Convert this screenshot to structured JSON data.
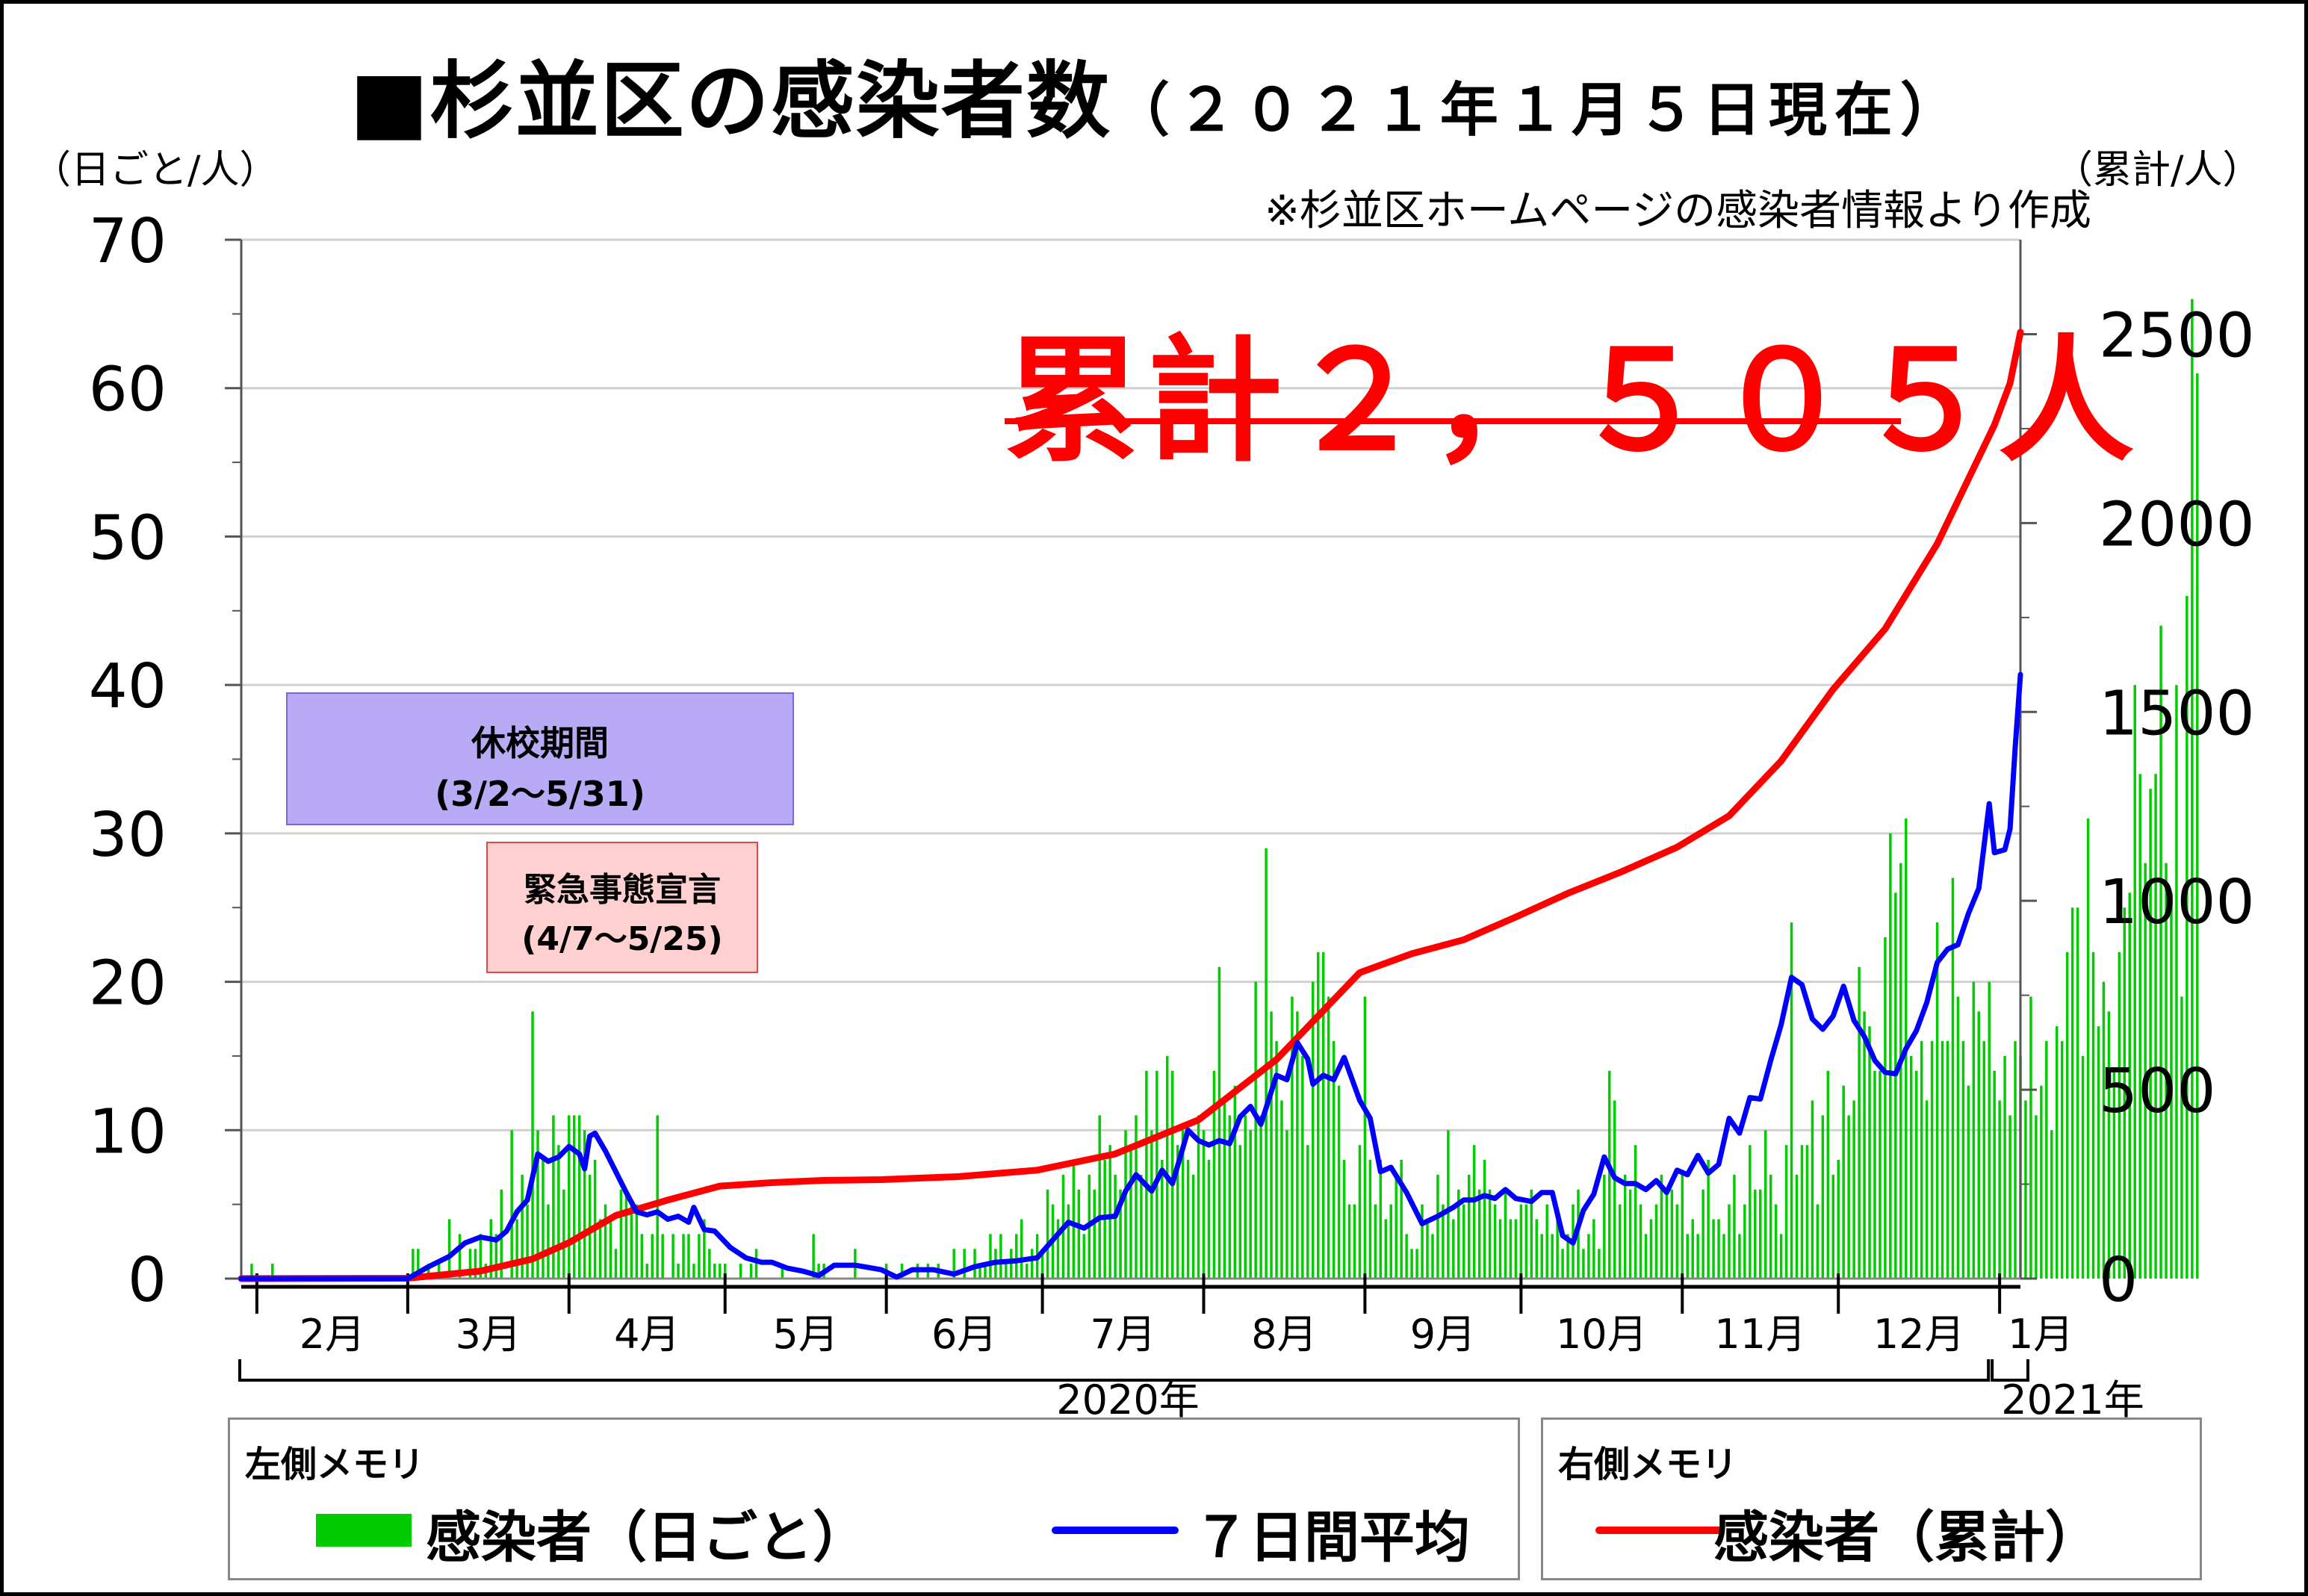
{
  "title": {
    "main": "■杉並区の感染者数",
    "sub": "（２０２１年１月５日現在）"
  },
  "units": {
    "left": "（日ごと/人）",
    "right": "（累計/人）"
  },
  "source_note": "※杉並区ホームページの感染者情報より作成",
  "cumulative_callout": "累計２，５０５人",
  "school_closure": {
    "title": "休校期間",
    "period": "(3/2～5/31)"
  },
  "emergency_declaration": {
    "title": "緊急事態宣言",
    "period": "(4/7～5/25)"
  },
  "legend": {
    "left_heading": "左側メモリ",
    "daily_label": "感染者（日ごと）",
    "avg_label": "７日間平均",
    "right_heading": "右側メモリ",
    "cum_label": "感染者（累計）"
  },
  "colors": {
    "daily": "#00cc00",
    "avg": "#0000ff",
    "cum": "#ff0000",
    "school": "#b8aaf5",
    "emergency": "#ffd0d0"
  },
  "chart_data": {
    "type": "bar+line",
    "x_start": "2020-01-29",
    "x_end": "2021-01-05",
    "months": [
      {
        "label": "2月",
        "start": "2020-02-01"
      },
      {
        "label": "3月",
        "start": "2020-03-01"
      },
      {
        "label": "4月",
        "start": "2020-04-01"
      },
      {
        "label": "5月",
        "start": "2020-05-01"
      },
      {
        "label": "6月",
        "start": "2020-06-01"
      },
      {
        "label": "7月",
        "start": "2020-07-01"
      },
      {
        "label": "8月",
        "start": "2020-08-01"
      },
      {
        "label": "9月",
        "start": "2020-09-01"
      },
      {
        "label": "10月",
        "start": "2020-10-01"
      },
      {
        "label": "11月",
        "start": "2020-11-01"
      },
      {
        "label": "12月",
        "start": "2020-12-01"
      },
      {
        "label": "1月",
        "start": "2021-01-01"
      }
    ],
    "years": [
      {
        "label": "2020年"
      },
      {
        "label": "2021年"
      }
    ],
    "y_left": {
      "min": 0,
      "max": 70,
      "ticks": [
        0,
        10,
        20,
        30,
        40,
        50,
        60,
        70
      ]
    },
    "y_right": {
      "min": 0,
      "max": 2750,
      "ticks": [
        0,
        500,
        1000,
        1500,
        2000,
        2500
      ]
    },
    "series": [
      {
        "type": "bar",
        "axis": "left",
        "start_date": "2020-01-29",
        "values": [
          0,
          0,
          1,
          0,
          0,
          0,
          1,
          0,
          0,
          0,
          0,
          0,
          0,
          0,
          0,
          0,
          0,
          0,
          0,
          0,
          0,
          0,
          0,
          0,
          0,
          0,
          0,
          0,
          0,
          0,
          0,
          0,
          0,
          2,
          2,
          0,
          1,
          0,
          1,
          0,
          4,
          0,
          3,
          0,
          2,
          2,
          3,
          1,
          4,
          3,
          6,
          0,
          10,
          4,
          7,
          5,
          18,
          10,
          8,
          5,
          11,
          9,
          6,
          11,
          11,
          11,
          10,
          7,
          8,
          4,
          5,
          4,
          2,
          6,
          6,
          5,
          5,
          3,
          1,
          3,
          11,
          3,
          0,
          3,
          1,
          3,
          3,
          1,
          3,
          4,
          2,
          1,
          1,
          1,
          0,
          0,
          1,
          0,
          1,
          2,
          0,
          0,
          0,
          0,
          1,
          0,
          0,
          0,
          0,
          0,
          3,
          1,
          1,
          0,
          0,
          0,
          0,
          0,
          2,
          0,
          0,
          0,
          0,
          0,
          1,
          0,
          0,
          1,
          0,
          0,
          1,
          0,
          1,
          0,
          1,
          0,
          0,
          2,
          0,
          2,
          0,
          2,
          1,
          1,
          3,
          2,
          3,
          1,
          2,
          3,
          4,
          1,
          2,
          3,
          2,
          6,
          5,
          4,
          7,
          5,
          8,
          6,
          3,
          7,
          6,
          11,
          8,
          9,
          7,
          6,
          10,
          9,
          11,
          7,
          14,
          10,
          14,
          8,
          15,
          14,
          9,
          10,
          8,
          7,
          11,
          10,
          8,
          14,
          21,
          12,
          11,
          13,
          9,
          11,
          10,
          20,
          11,
          29,
          18,
          16,
          12,
          10,
          19,
          18,
          15,
          9,
          20,
          22,
          22,
          19,
          16,
          13,
          8,
          5,
          5,
          9,
          19,
          8,
          5,
          8,
          4,
          5,
          7,
          8,
          3,
          2,
          2,
          5,
          4,
          3,
          7,
          5,
          10,
          4,
          6,
          5,
          7,
          9,
          6,
          8,
          6,
          5,
          4,
          6,
          4,
          4,
          5,
          5,
          6,
          4,
          3,
          5,
          3,
          4,
          2,
          3,
          5,
          6,
          2,
          3,
          4,
          2,
          7,
          14,
          12,
          5,
          7,
          6,
          9,
          5,
          3,
          4,
          5,
          7,
          6,
          6,
          5,
          7,
          3,
          4,
          3,
          6,
          8,
          4,
          4,
          3,
          5,
          7,
          3,
          5,
          9,
          6,
          6,
          10,
          7,
          5,
          3,
          9,
          24,
          7,
          9,
          9,
          12,
          5,
          11,
          14,
          7,
          8,
          13,
          11,
          12,
          21,
          18,
          17,
          14,
          14,
          23,
          30,
          26,
          28,
          31,
          15,
          14,
          16,
          12,
          16,
          24,
          16,
          16,
          27,
          19,
          16,
          13,
          20,
          18,
          16,
          20,
          14,
          12,
          15,
          11,
          16,
          15,
          12,
          19,
          11,
          13,
          16,
          10,
          17,
          16,
          22,
          25,
          25,
          15,
          31,
          22,
          17,
          20,
          18,
          14,
          22,
          25,
          26,
          40,
          34,
          28,
          33,
          34,
          44,
          28,
          26,
          40,
          19,
          46,
          66,
          61
        ]
      },
      {
        "type": "line",
        "axis": "left",
        "points": [
          [
            "2020-01-29",
            0
          ],
          [
            "2020-03-01",
            0
          ],
          [
            "2020-03-05",
            0.8
          ],
          [
            "2020-03-09",
            1.5
          ],
          [
            "2020-03-12",
            2.4
          ],
          [
            "2020-03-15",
            2.8
          ],
          [
            "2020-03-18",
            2.6
          ],
          [
            "2020-03-20",
            3.2
          ],
          [
            "2020-03-22",
            4.5
          ],
          [
            "2020-03-24",
            5.3
          ],
          [
            "2020-03-26",
            8.4
          ],
          [
            "2020-03-28",
            7.9
          ],
          [
            "2020-03-30",
            8.2
          ],
          [
            "2020-04-01",
            8.9
          ],
          [
            "2020-04-03",
            8.4
          ],
          [
            "2020-04-04",
            7.4
          ],
          [
            "2020-04-05",
            9.6
          ],
          [
            "2020-04-06",
            9.8
          ],
          [
            "2020-04-08",
            8.6
          ],
          [
            "2020-04-10",
            7.2
          ],
          [
            "2020-04-12",
            5.8
          ],
          [
            "2020-04-14",
            4.5
          ],
          [
            "2020-04-16",
            4.3
          ],
          [
            "2020-04-18",
            4.5
          ],
          [
            "2020-04-20",
            4.0
          ],
          [
            "2020-04-22",
            4.2
          ],
          [
            "2020-04-24",
            3.8
          ],
          [
            "2020-04-25",
            4.8
          ],
          [
            "2020-04-27",
            3.3
          ],
          [
            "2020-04-29",
            3.2
          ],
          [
            "2020-05-02",
            2.1
          ],
          [
            "2020-05-05",
            1.4
          ],
          [
            "2020-05-08",
            1.1
          ],
          [
            "2020-05-10",
            1.1
          ],
          [
            "2020-05-13",
            0.7
          ],
          [
            "2020-05-16",
            0.5
          ],
          [
            "2020-05-19",
            0.2
          ],
          [
            "2020-05-22",
            0.9
          ],
          [
            "2020-05-26",
            0.9
          ],
          [
            "2020-05-31",
            0.6
          ],
          [
            "2020-06-03",
            0.1
          ],
          [
            "2020-06-06",
            0.6
          ],
          [
            "2020-06-10",
            0.6
          ],
          [
            "2020-06-14",
            0.3
          ],
          [
            "2020-06-18",
            0.8
          ],
          [
            "2020-06-22",
            1.1
          ],
          [
            "2020-06-26",
            1.2
          ],
          [
            "2020-06-30",
            1.4
          ],
          [
            "2020-07-03",
            2.6
          ],
          [
            "2020-07-06",
            3.8
          ],
          [
            "2020-07-09",
            3.4
          ],
          [
            "2020-07-12",
            4.1
          ],
          [
            "2020-07-15",
            4.2
          ],
          [
            "2020-07-17",
            5.9
          ],
          [
            "2020-07-19",
            7.0
          ],
          [
            "2020-07-22",
            5.9
          ],
          [
            "2020-07-24",
            7.3
          ],
          [
            "2020-07-26",
            6.4
          ],
          [
            "2020-07-29",
            10.0
          ],
          [
            "2020-07-31",
            9.3
          ],
          [
            "2020-08-02",
            9.0
          ],
          [
            "2020-08-04",
            9.3
          ],
          [
            "2020-08-06",
            9.1
          ],
          [
            "2020-08-08",
            10.9
          ],
          [
            "2020-08-10",
            11.6
          ],
          [
            "2020-08-12",
            10.4
          ],
          [
            "2020-08-15",
            13.7
          ],
          [
            "2020-08-17",
            13.4
          ],
          [
            "2020-08-19",
            15.9
          ],
          [
            "2020-08-21",
            14.8
          ],
          [
            "2020-08-22",
            13.1
          ],
          [
            "2020-08-24",
            13.7
          ],
          [
            "2020-08-26",
            13.4
          ],
          [
            "2020-08-28",
            14.9
          ],
          [
            "2020-08-31",
            12.0
          ],
          [
            "2020-09-02",
            10.8
          ],
          [
            "2020-09-04",
            7.2
          ],
          [
            "2020-09-06",
            7.5
          ],
          [
            "2020-09-09",
            5.8
          ],
          [
            "2020-09-12",
            3.7
          ],
          [
            "2020-09-15",
            4.2
          ],
          [
            "2020-09-18",
            4.8
          ],
          [
            "2020-09-20",
            5.3
          ],
          [
            "2020-09-22",
            5.3
          ],
          [
            "2020-09-24",
            5.6
          ],
          [
            "2020-09-26",
            5.4
          ],
          [
            "2020-09-28",
            6.0
          ],
          [
            "2020-09-30",
            5.4
          ],
          [
            "2020-10-03",
            5.2
          ],
          [
            "2020-10-05",
            5.8
          ],
          [
            "2020-10-07",
            5.8
          ],
          [
            "2020-10-09",
            2.9
          ],
          [
            "2020-10-11",
            2.4
          ],
          [
            "2020-10-13",
            4.6
          ],
          [
            "2020-10-15",
            5.7
          ],
          [
            "2020-10-17",
            8.2
          ],
          [
            "2020-10-19",
            6.8
          ],
          [
            "2020-10-21",
            6.4
          ],
          [
            "2020-10-23",
            6.4
          ],
          [
            "2020-10-25",
            6.0
          ],
          [
            "2020-10-27",
            6.6
          ],
          [
            "2020-10-29",
            5.8
          ],
          [
            "2020-10-31",
            7.3
          ],
          [
            "2020-11-02",
            7.0
          ],
          [
            "2020-11-04",
            8.3
          ],
          [
            "2020-11-06",
            7.1
          ],
          [
            "2020-11-08",
            7.7
          ],
          [
            "2020-11-10",
            10.8
          ],
          [
            "2020-11-12",
            9.8
          ],
          [
            "2020-11-14",
            12.2
          ],
          [
            "2020-11-16",
            12.1
          ],
          [
            "2020-11-18",
            14.7
          ],
          [
            "2020-11-20",
            17.1
          ],
          [
            "2020-11-22",
            20.3
          ],
          [
            "2020-11-24",
            19.8
          ],
          [
            "2020-11-26",
            17.5
          ],
          [
            "2020-11-28",
            16.8
          ],
          [
            "2020-11-30",
            17.7
          ],
          [
            "2020-12-02",
            19.7
          ],
          [
            "2020-12-04",
            17.4
          ],
          [
            "2020-12-06",
            16.3
          ],
          [
            "2020-12-08",
            14.7
          ],
          [
            "2020-12-10",
            13.9
          ],
          [
            "2020-12-12",
            13.8
          ],
          [
            "2020-12-14",
            15.5
          ],
          [
            "2020-12-16",
            16.7
          ],
          [
            "2020-12-18",
            18.6
          ],
          [
            "2020-12-20",
            21.3
          ],
          [
            "2020-12-22",
            22.2
          ],
          [
            "2020-12-24",
            22.5
          ],
          [
            "2020-12-26",
            24.6
          ],
          [
            "2020-12-28",
            26.3
          ],
          [
            "2020-12-30",
            32.0
          ],
          [
            "2020-12-31",
            28.7
          ],
          [
            "2021-01-02",
            28.9
          ],
          [
            "2021-01-03",
            30.3
          ],
          [
            "2021-01-04",
            35.8
          ],
          [
            "2021-01-05",
            40.7
          ]
        ]
      },
      {
        "type": "line",
        "axis": "right",
        "points": [
          [
            "2020-01-29",
            0
          ],
          [
            "2020-03-01",
            1
          ],
          [
            "2020-03-15",
            20
          ],
          [
            "2020-03-25",
            52
          ],
          [
            "2020-04-01",
            95
          ],
          [
            "2020-04-10",
            167
          ],
          [
            "2020-04-20",
            208
          ],
          [
            "2020-04-30",
            245
          ],
          [
            "2020-05-10",
            254
          ],
          [
            "2020-05-20",
            260
          ],
          [
            "2020-05-31",
            262
          ],
          [
            "2020-06-15",
            270
          ],
          [
            "2020-06-30",
            287
          ],
          [
            "2020-07-15",
            330
          ],
          [
            "2020-07-31",
            420
          ],
          [
            "2020-08-15",
            580
          ],
          [
            "2020-08-31",
            810
          ],
          [
            "2020-09-10",
            860
          ],
          [
            "2020-09-20",
            897
          ],
          [
            "2020-09-30",
            957
          ],
          [
            "2020-10-10",
            1020
          ],
          [
            "2020-10-20",
            1075
          ],
          [
            "2020-10-31",
            1142
          ],
          [
            "2020-11-10",
            1225
          ],
          [
            "2020-11-20",
            1370
          ],
          [
            "2020-11-30",
            1560
          ],
          [
            "2020-12-10",
            1720
          ],
          [
            "2020-12-20",
            1945
          ],
          [
            "2020-12-31",
            2260
          ],
          [
            "2021-01-03",
            2370
          ],
          [
            "2021-01-05",
            2505
          ]
        ]
      }
    ]
  }
}
